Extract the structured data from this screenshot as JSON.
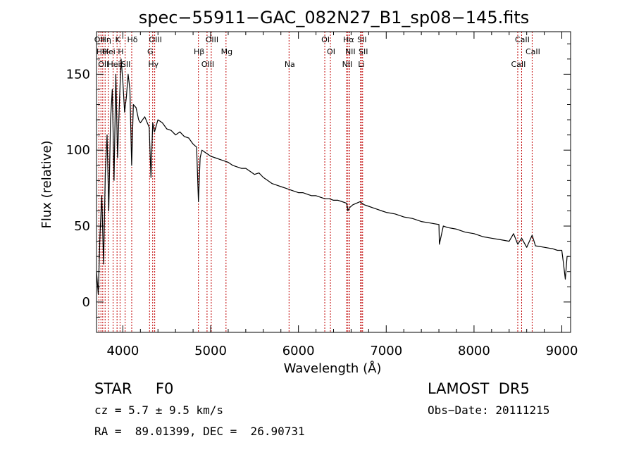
{
  "chart_data": {
    "type": "line",
    "title": "spec−55911−GAC_082N27_B1_sp08−145.fits",
    "xlabel": "Wavelength (Å)",
    "ylabel": "Flux (relative)",
    "xlim": [
      3700,
      9100
    ],
    "ylim": [
      -20,
      178
    ],
    "xticks": [
      4000,
      5000,
      6000,
      7000,
      8000,
      9000
    ],
    "yticks": [
      0,
      50,
      100,
      150
    ],
    "grid": false,
    "series": [
      {
        "color": "#000000",
        "x": [
          3700,
          3720,
          3740,
          3760,
          3780,
          3800,
          3820,
          3840,
          3860,
          3880,
          3900,
          3920,
          3940,
          3960,
          3980,
          4000,
          4020,
          4040,
          4060,
          4080,
          4100,
          4120,
          4150,
          4180,
          4200,
          4250,
          4300,
          4320,
          4340,
          4360,
          4400,
          4450,
          4500,
          4550,
          4600,
          4650,
          4700,
          4750,
          4800,
          4840,
          4861,
          4880,
          4900,
          4950,
          5000,
          5050,
          5100,
          5150,
          5200,
          5250,
          5300,
          5350,
          5400,
          5450,
          5500,
          5550,
          5600,
          5650,
          5700,
          5750,
          5800,
          5850,
          5900,
          5950,
          6000,
          6050,
          6100,
          6150,
          6200,
          6250,
          6300,
          6350,
          6400,
          6450,
          6500,
          6550,
          6563,
          6580,
          6620,
          6660,
          6700,
          6750,
          6800,
          6850,
          6900,
          6950,
          7000,
          7100,
          7200,
          7300,
          7400,
          7500,
          7600,
          7605,
          7650,
          7700,
          7800,
          7900,
          8000,
          8100,
          8200,
          8300,
          8400,
          8450,
          8498,
          8542,
          8600,
          8662,
          8700,
          8800,
          8900,
          8950,
          9000,
          9020,
          9040,
          9060,
          9080
        ],
        "values": [
          20,
          5,
          45,
          70,
          25,
          85,
          110,
          60,
          120,
          140,
          80,
          150,
          95,
          130,
          160,
          145,
          125,
          135,
          150,
          140,
          90,
          130,
          128,
          120,
          118,
          122,
          115,
          82,
          118,
          112,
          120,
          118,
          114,
          113,
          110,
          112,
          109,
          108,
          104,
          102,
          66,
          95,
          100,
          98,
          96,
          95,
          94,
          93,
          92,
          90,
          89,
          88,
          88,
          86,
          84,
          85,
          82,
          80,
          78,
          77,
          76,
          75,
          74,
          73,
          72,
          72,
          71,
          70,
          70,
          69,
          68,
          68,
          67,
          67,
          66,
          65,
          60,
          62,
          64,
          65,
          66,
          64,
          63,
          62,
          61,
          60,
          59,
          58,
          56,
          55,
          53,
          52,
          51,
          38,
          50,
          49,
          48,
          46,
          45,
          43,
          42,
          41,
          40,
          45,
          38,
          42,
          36,
          44,
          37,
          36,
          35,
          34,
          34,
          25,
          15,
          30,
          30
        ]
      }
    ],
    "lines": [
      {
        "wave": 3727,
        "label": "OII"
      },
      {
        "wave": 3750,
        "label": "Hθ"
      },
      {
        "wave": 3771,
        "label": "OII"
      },
      {
        "wave": 3798,
        "label": "Hη"
      },
      {
        "wave": 3835,
        "label": "Hei"
      },
      {
        "wave": 3889,
        "label": "Hei"
      },
      {
        "wave": 3934,
        "label": "K"
      },
      {
        "wave": 3968,
        "label": "H"
      },
      {
        "wave": 4026,
        "label": "SII"
      },
      {
        "wave": 4101,
        "label": "Hδ"
      },
      {
        "wave": 4304,
        "label": "G"
      },
      {
        "wave": 4340,
        "label": "Hγ"
      },
      {
        "wave": 4363,
        "label": "OIII"
      },
      {
        "wave": 4861,
        "label": "Hβ"
      },
      {
        "wave": 4959,
        "label": "OIII"
      },
      {
        "wave": 5007,
        "label": "OIII"
      },
      {
        "wave": 5175,
        "label": "Mg"
      },
      {
        "wave": 5893,
        "label": "Na"
      },
      {
        "wave": 6300,
        "label": "OI"
      },
      {
        "wave": 6364,
        "label": "OI"
      },
      {
        "wave": 6548,
        "label": "NII"
      },
      {
        "wave": 6563,
        "label": "Hα"
      },
      {
        "wave": 6583,
        "label": "NII"
      },
      {
        "wave": 6708,
        "label": "Li"
      },
      {
        "wave": 6716,
        "label": "SII"
      },
      {
        "wave": 6731,
        "label": "SII"
      },
      {
        "wave": 8498,
        "label": "CaII"
      },
      {
        "wave": 8542,
        "label": "CaII"
      },
      {
        "wave": 8662,
        "label": "CaII"
      }
    ]
  },
  "info": {
    "class_text": "STAR     F0",
    "survey": "LAMOST  DR5",
    "cz_text": "cz = 5.7 ± 9.5 km/s",
    "obs_date": "Obs−Date: 20111215",
    "coords": "RA =  89.01399, DEC =  26.90731"
  }
}
